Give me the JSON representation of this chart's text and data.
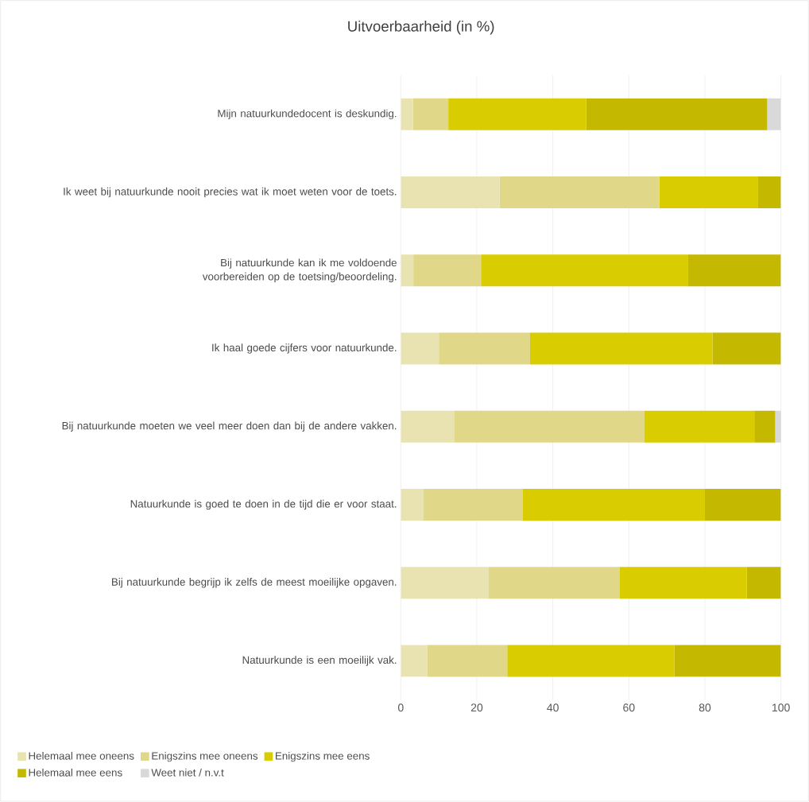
{
  "chart_data": {
    "type": "bar",
    "orientation": "horizontal",
    "stacked": true,
    "title": "Uitvoerbaarheid (in %)",
    "categories": [
      "Mijn natuurkundedocent is deskundig.",
      "Ik weet bij natuurkunde nooit precies wat ik moet weten voor de toets.",
      "Bij natuurkunde kan ik me voldoende voorbereiden op de toetsing/beoordeling.",
      "Ik haal goede cijfers voor natuurkunde.",
      "Bij natuurkunde moeten we veel meer doen dan bij de andere vakken.",
      "Natuurkunde is goed te doen in de tijd die er voor staat.",
      "Bij natuurkunde begrijp ik zelfs de meest moeilijke opgaven.",
      "Natuurkunde is een moeilijk vak."
    ],
    "series": [
      {
        "name": "Helemaal mee oneens",
        "color": "#e8e3b0",
        "values": [
          3.2,
          26,
          3.3,
          10,
          14,
          6,
          23,
          7
        ]
      },
      {
        "name": "Enigszins mee oneens",
        "color": "#e0d888",
        "values": [
          9.3,
          42,
          17.8,
          24,
          50,
          26,
          34.5,
          21
        ]
      },
      {
        "name": "Enigszins mee eens",
        "color": "#d9cc00",
        "values": [
          36.3,
          26,
          54.5,
          48,
          29,
          48,
          33.5,
          44
        ]
      },
      {
        "name": "Helemaal mee eens",
        "color": "#c4b800",
        "values": [
          47.6,
          6,
          24.4,
          18,
          5.5,
          20,
          9,
          28
        ]
      },
      {
        "name": "Weet niet / n.v.t",
        "color": "#d9d9d9",
        "values": [
          3.6,
          0,
          0,
          0,
          1.7,
          0,
          0,
          0
        ]
      }
    ],
    "xlim": [
      0,
      100
    ],
    "xticks": [
      0,
      20,
      40,
      60,
      80,
      100
    ],
    "grid": "x",
    "legend": "bottom"
  }
}
